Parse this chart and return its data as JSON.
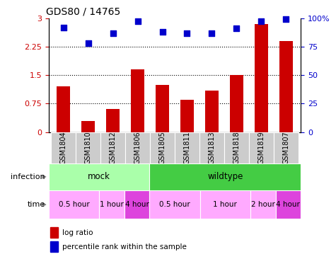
{
  "title": "GDS80 / 14765",
  "samples": [
    "GSM1804",
    "GSM1810",
    "GSM1812",
    "GSM1806",
    "GSM1805",
    "GSM1811",
    "GSM1813",
    "GSM1818",
    "GSM1819",
    "GSM1807"
  ],
  "log_ratio": [
    1.2,
    0.3,
    0.6,
    1.65,
    1.25,
    0.85,
    1.1,
    1.5,
    2.85,
    2.4
  ],
  "percentile": [
    92,
    78,
    87,
    97,
    88,
    87,
    87,
    91,
    97,
    99
  ],
  "bar_color": "#cc0000",
  "dot_color": "#0000cc",
  "ylim_left": [
    0,
    3
  ],
  "ylim_right": [
    0,
    100
  ],
  "yticks_left": [
    0,
    0.75,
    1.5,
    2.25,
    3.0
  ],
  "yticks_right": [
    0,
    25,
    50,
    75,
    100
  ],
  "ytick_labels_left": [
    "0",
    "0.75",
    "1.5",
    "2.25",
    "3"
  ],
  "ytick_labels_right": [
    "0",
    "25",
    "50",
    "75",
    "100%"
  ],
  "hline_values": [
    0.75,
    1.5,
    2.25
  ],
  "infection_row": [
    {
      "label": "mock",
      "start": 0,
      "end": 4,
      "color": "#aaffaa"
    },
    {
      "label": "wildtype",
      "start": 4,
      "end": 10,
      "color": "#44cc44"
    }
  ],
  "time_row": [
    {
      "label": "0.5 hour",
      "start": 0,
      "end": 2,
      "color": "#ffaaff"
    },
    {
      "label": "1 hour",
      "start": 2,
      "end": 3,
      "color": "#ffaaff"
    },
    {
      "label": "4 hour",
      "start": 3,
      "end": 4,
      "color": "#dd44dd"
    },
    {
      "label": "0.5 hour",
      "start": 4,
      "end": 6,
      "color": "#ffaaff"
    },
    {
      "label": "1 hour",
      "start": 6,
      "end": 8,
      "color": "#ffaaff"
    },
    {
      "label": "2 hour",
      "start": 8,
      "end": 9,
      "color": "#ffaaff"
    },
    {
      "label": "4 hour",
      "start": 9,
      "end": 10,
      "color": "#dd44dd"
    }
  ],
  "legend_items": [
    {
      "label": "log ratio",
      "color": "#cc0000"
    },
    {
      "label": "percentile rank within the sample",
      "color": "#0000cc"
    }
  ],
  "bar_width": 0.55,
  "dot_size": 40,
  "sample_box_color": "#cccccc",
  "background_color": "#ffffff",
  "left_label_color": "#888888",
  "arrow_color": "#888888",
  "infection_label": "infection",
  "time_label": "time"
}
